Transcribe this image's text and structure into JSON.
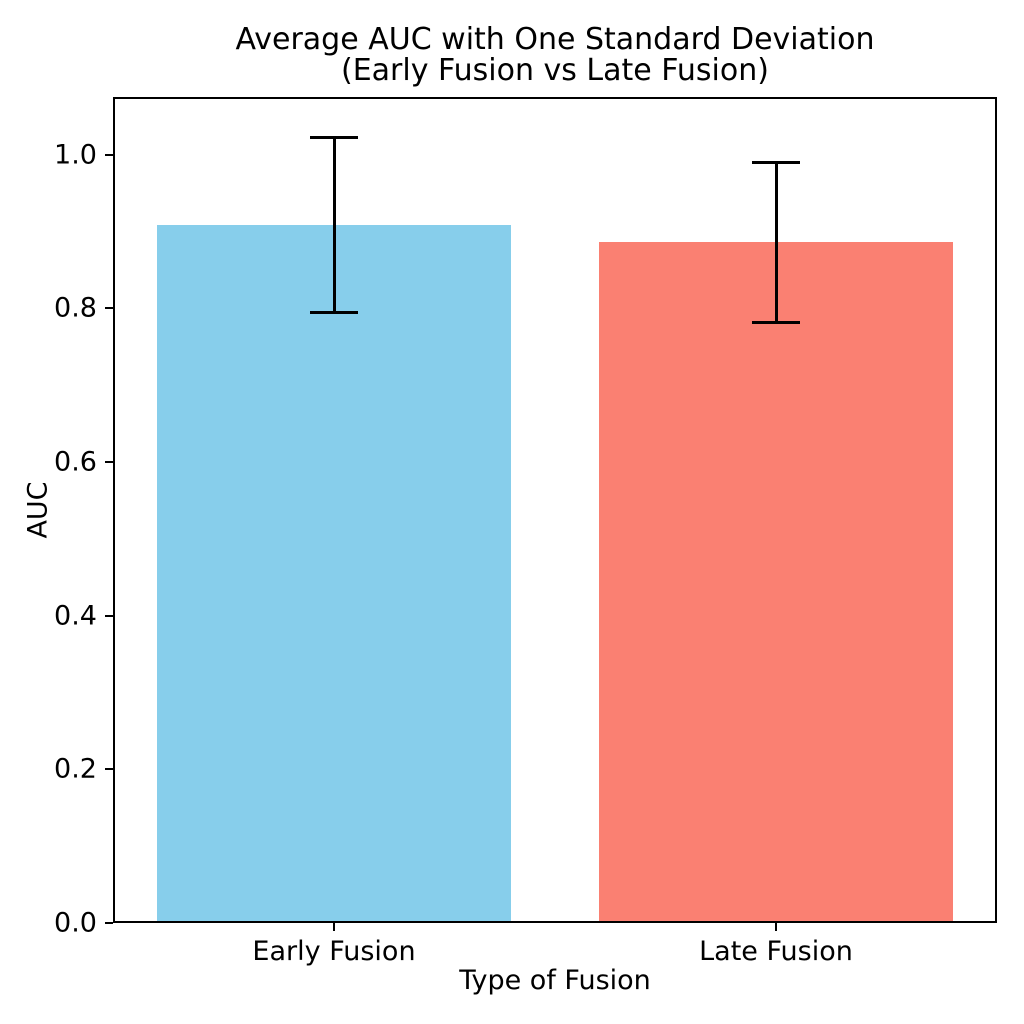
{
  "title": {
    "line1": "Average AUC with One Standard Deviation",
    "line2": "(Early Fusion vs Late Fusion)"
  },
  "chart_data": {
    "type": "bar",
    "title": "Average AUC with One Standard Deviation (Early Fusion vs Late Fusion)",
    "categories": [
      "Early Fusion",
      "Late Fusion"
    ],
    "values": [
      0.908,
      0.886
    ],
    "errors": [
      0.114,
      0.104
    ],
    "error_style": "one standard deviation, black caps",
    "bar_colors": [
      "#87CEEB",
      "#FA8072"
    ],
    "error_color": "#000000",
    "xlabel": "Type of Fusion",
    "ylabel": "AUC",
    "ylim": [
      0,
      1.075
    ],
    "yticks": [
      0,
      0.2,
      0.4,
      0.6,
      0.8,
      1.0
    ],
    "ytick_labels": [
      "0.0",
      "0.2",
      "0.4",
      "0.6",
      "0.8",
      "1.0"
    ],
    "bar_width_fraction": 0.8,
    "grid": false,
    "legend": null,
    "background": "#ffffff"
  }
}
